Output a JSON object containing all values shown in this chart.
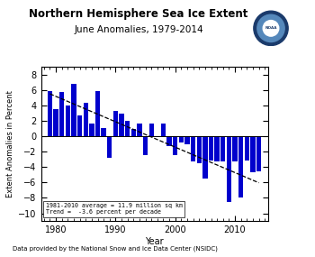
{
  "title": "Northern Hemisphere Sea Ice Extent",
  "subtitle": "June Anomalies, 1979-2014",
  "xlabel": "Year",
  "ylabel": "Extent Anomalies in Percent",
  "footer": "Data provided by the National Snow and Ice Data Center (NSIDC)",
  "legend_line1": "1981-2010 average = 11.9 million sq km",
  "legend_line2": "Trend =  -3.6 percent per decade",
  "bar_color": "#0000CC",
  "ylim": [
    -11,
    9
  ],
  "yticks": [
    -10,
    -8,
    -6,
    -4,
    -2,
    0,
    2,
    4,
    6,
    8
  ],
  "xlim": [
    1977.5,
    2015.5
  ],
  "xtick_major": [
    1980,
    1990,
    2000,
    2010
  ],
  "years": [
    1979,
    1980,
    1981,
    1982,
    1983,
    1984,
    1985,
    1986,
    1987,
    1988,
    1989,
    1990,
    1991,
    1992,
    1993,
    1994,
    1995,
    1996,
    1997,
    1998,
    1999,
    2000,
    2001,
    2002,
    2003,
    2004,
    2005,
    2006,
    2007,
    2008,
    2009,
    2010,
    2011,
    2012,
    2013,
    2014
  ],
  "values": [
    5.9,
    3.5,
    5.7,
    4.0,
    6.8,
    2.7,
    4.3,
    1.7,
    5.8,
    1.0,
    -2.8,
    3.3,
    2.9,
    2.0,
    0.9,
    1.7,
    -2.5,
    1.6,
    -0.1,
    1.6,
    -1.3,
    -2.5,
    -0.8,
    -1.0,
    -3.3,
    -3.5,
    -5.5,
    -3.1,
    -3.3,
    -3.3,
    -8.5,
    -3.3,
    -7.9,
    -3.1,
    -4.7,
    -4.6
  ]
}
